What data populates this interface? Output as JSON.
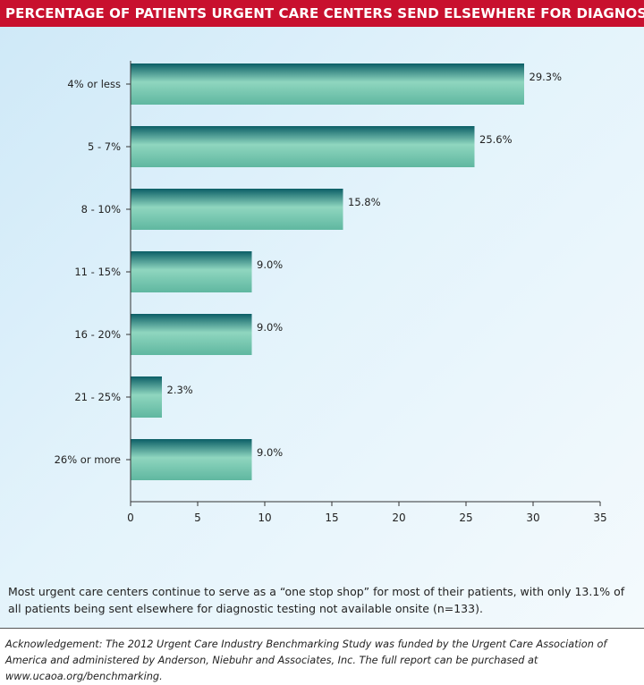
{
  "header": {
    "title": "PERCENTAGE OF PATIENTS URGENT CARE CENTERS SEND ELSEWHERE FOR DIAGNOSTIC TESTS"
  },
  "chart_data": {
    "type": "bar",
    "orientation": "horizontal",
    "title": "PERCENTAGE OF PATIENTS URGENT CARE CENTERS SEND ELSEWHERE FOR DIAGNOSTIC TESTS",
    "categories": [
      "4% or less",
      "5 - 7%",
      "8 - 10%",
      "11 - 15%",
      "16 - 20%",
      "21 - 25%",
      "26% or more"
    ],
    "values": [
      29.3,
      25.6,
      15.8,
      9.0,
      9.0,
      2.3,
      9.0
    ],
    "data_labels": [
      "29.3%",
      "25.6%",
      "15.8%",
      "9.0%",
      "9.0%",
      "2.3%",
      "9.0%"
    ],
    "xlim": [
      0,
      35
    ],
    "x_ticks": [
      0,
      5,
      10,
      15,
      20,
      25,
      30,
      35
    ],
    "xlabel": "",
    "ylabel": "",
    "grid": false,
    "colors": {
      "bar_top": "#0b5e66",
      "bar_mid": "#8fd6bf",
      "bar_bottom": "#5fb7a0"
    }
  },
  "caption": "Most urgent care centers continue to serve as a “one stop shop” for most of their patients, with only 13.1% of all patients being sent elsewhere for diagnostic testing not available onsite (n=133).",
  "acknowledgement": "Acknowledgement: The 2012 Urgent Care Industry Benchmarking Study was funded by the Urgent Care Association of America and administered by Anderson, Niebuhr and Associates, Inc. The full report can be purchased at www.ucaoa.org/benchmarking."
}
